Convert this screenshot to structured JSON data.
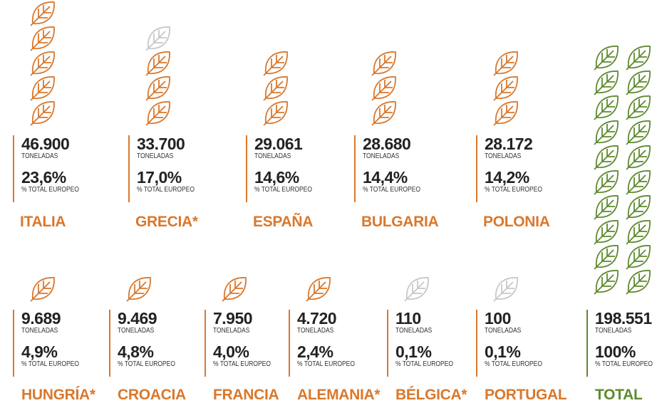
{
  "items": [
    {
      "tonnes": "46.900",
      "unit": "TONELADAS",
      "share": "23,6%",
      "share_label": "% TOTAL EUROPEO",
      "name": "ITALIA"
    },
    {
      "tonnes": "33.700",
      "unit": "TONELADAS",
      "share": "17,0%",
      "share_label": "% TOTAL EUROPEO",
      "name": "GRECIA*"
    },
    {
      "tonnes": "29.061",
      "unit": "TONELADAS",
      "share": "14,6%",
      "share_label": "% TOTAL EUROPEO",
      "name": "ESPAÑA"
    },
    {
      "tonnes": "28.680",
      "unit": "TONELADAS",
      "share": "14,4%",
      "share_label": "% TOTAL EUROPEO",
      "name": "BULGARIA"
    },
    {
      "tonnes": "28.172",
      "unit": "TONELADAS",
      "share": "14,2%",
      "share_label": "% TOTAL EUROPEO",
      "name": "POLONIA"
    },
    {
      "tonnes": "9.689",
      "unit": "TONELADAS",
      "share": "4,9%",
      "share_label": "% TOTAL EUROPEO",
      "name": "HUNGRÍA*"
    },
    {
      "tonnes": "9.469",
      "unit": "TONELADAS",
      "share": "4,8%",
      "share_label": "% TOTAL EUROPEO",
      "name": "CROACIA"
    },
    {
      "tonnes": "7.950",
      "unit": "TONELADAS",
      "share": "4,0%",
      "share_label": "% TOTAL EUROPEO",
      "name": "FRANCIA"
    },
    {
      "tonnes": "4.720",
      "unit": "TONELADAS",
      "share": "2,4%",
      "share_label": "% TOTAL EUROPEO",
      "name": "ALEMANIA*"
    },
    {
      "tonnes": "110",
      "unit": "TONELADAS",
      "share": "0,1%",
      "share_label": "% TOTAL EUROPEO",
      "name": "BÉLGICA*"
    },
    {
      "tonnes": "100",
      "unit": "TONELADAS",
      "share": "0,1%",
      "share_label": "% TOTAL EUROPEO",
      "name": "PORTUGAL"
    }
  ],
  "total": {
    "tonnes": "198.551",
    "unit": "TONELADAS",
    "share": "100%",
    "share_label": "% TOTAL EUROPEO",
    "name": "TOTAL"
  }
}
